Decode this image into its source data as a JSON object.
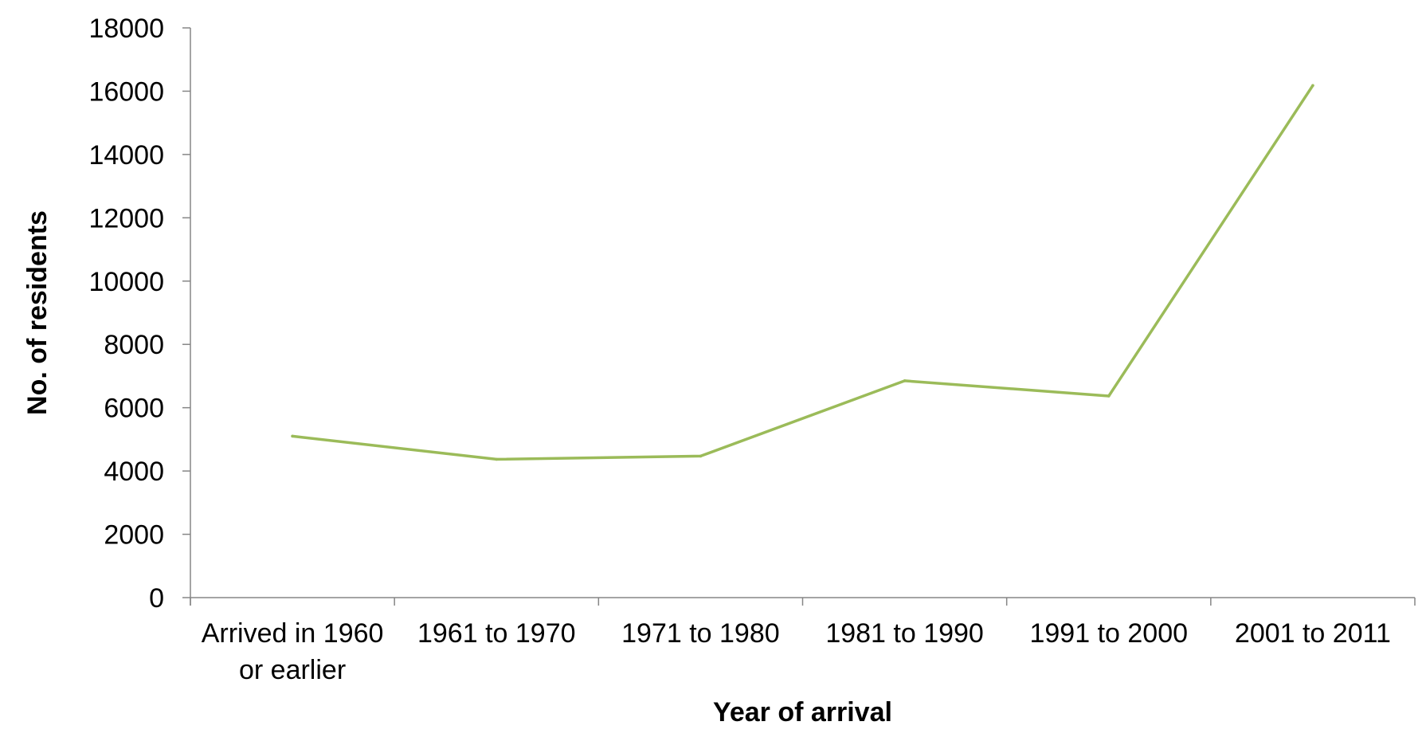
{
  "chart_data": {
    "type": "line",
    "title": "",
    "xlabel": "Year of arrival",
    "ylabel": "No. of residents",
    "categories": [
      [
        "Arrived in 1960",
        "or earlier"
      ],
      [
        "1961 to 1970"
      ],
      [
        "1971 to 1980"
      ],
      [
        "1981 to 1990"
      ],
      [
        "1991 to 2000"
      ],
      [
        "2001 to 2011"
      ]
    ],
    "series": [
      {
        "values": [
          5100,
          4370,
          4470,
          6850,
          6370,
          16180
        ]
      }
    ],
    "ylim": [
      0,
      18000
    ],
    "yticks": [
      0,
      2000,
      4000,
      6000,
      8000,
      10000,
      12000,
      14000,
      16000,
      18000
    ],
    "grid": false,
    "legend": "none",
    "line_color": "#9BBB59",
    "axis_color": "#868686"
  }
}
